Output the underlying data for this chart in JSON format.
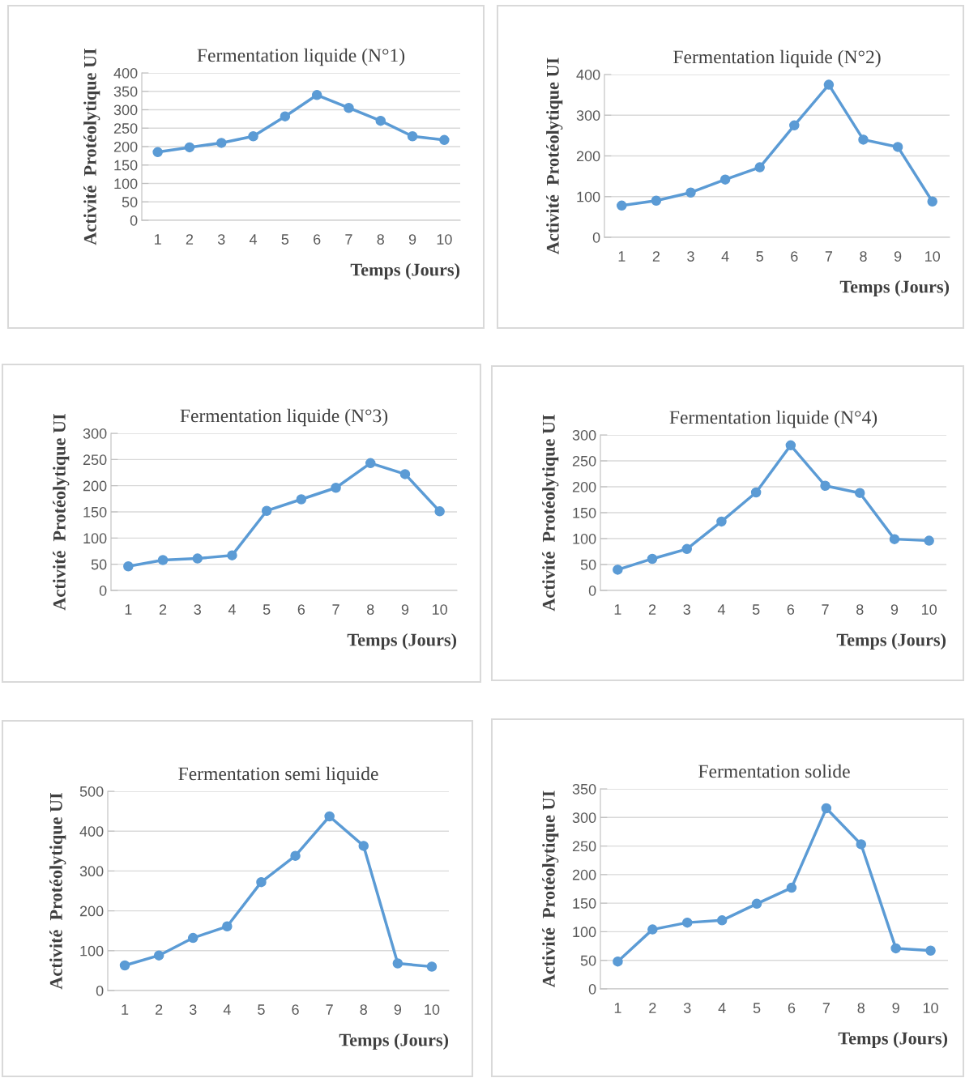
{
  "chart_data": [
    {
      "type": "line",
      "title": "Fermentation liquide (N°1)",
      "xlabel": "Temps (Jours)",
      "ylabel": "Activité  Protéolytique UI",
      "categories": [
        "1",
        "2",
        "3",
        "4",
        "5",
        "6",
        "7",
        "8",
        "9",
        "10"
      ],
      "series": [
        {
          "color": "#5b9bd5",
          "values": [
            185,
            198,
            210,
            228,
            282,
            340,
            305,
            270,
            228,
            218
          ]
        }
      ],
      "ylim": [
        0,
        400
      ],
      "yticks": [
        0,
        50,
        100,
        150,
        200,
        250,
        300,
        350,
        400
      ],
      "grid": "y",
      "marker": "circle",
      "legend": false
    },
    {
      "type": "line",
      "title": "Fermentation liquide (N°2)",
      "xlabel": "Temps (Jours)",
      "ylabel": "Activité  Protéolytique UI",
      "categories": [
        "1",
        "2",
        "3",
        "4",
        "5",
        "6",
        "7",
        "8",
        "9",
        "10"
      ],
      "series": [
        {
          "color": "#5b9bd5",
          "values": [
            78,
            90,
            110,
            142,
            172,
            275,
            375,
            240,
            222,
            88
          ]
        }
      ],
      "ylim": [
        0,
        400
      ],
      "yticks": [
        0,
        100,
        200,
        300,
        400
      ],
      "grid": "y",
      "marker": "circle",
      "legend": false
    },
    {
      "type": "line",
      "title": "Fermentation liquide (N°3)",
      "xlabel": "Temps (Jours)",
      "ylabel": "Activité  Protéolytique UI",
      "categories": [
        "1",
        "2",
        "3",
        "4",
        "5",
        "6",
        "7",
        "8",
        "9",
        "10"
      ],
      "series": [
        {
          "color": "#5b9bd5",
          "values": [
            46,
            58,
            61,
            67,
            152,
            174,
            196,
            243,
            222,
            151
          ]
        }
      ],
      "ylim": [
        0,
        300
      ],
      "yticks": [
        0,
        50,
        100,
        150,
        200,
        250,
        300
      ],
      "grid": "y",
      "marker": "circle",
      "legend": false
    },
    {
      "type": "line",
      "title": "Fermentation liquide (N°4)",
      "xlabel": "Temps (Jours)",
      "ylabel": "Activité  Protéolytique UI",
      "categories": [
        "1",
        "2",
        "3",
        "4",
        "5",
        "6",
        "7",
        "8",
        "9",
        "10"
      ],
      "series": [
        {
          "color": "#5b9bd5",
          "values": [
            40,
            61,
            80,
            133,
            189,
            280,
            202,
            188,
            99,
            96
          ]
        }
      ],
      "ylim": [
        0,
        300
      ],
      "yticks": [
        0,
        50,
        100,
        150,
        200,
        250,
        300
      ],
      "grid": "y",
      "marker": "circle",
      "legend": false
    },
    {
      "type": "line",
      "title": "Fermentation semi liquide",
      "xlabel": "Temps (Jours)",
      "ylabel": "Activité  Protéolytique UI",
      "categories": [
        "1",
        "2",
        "3",
        "4",
        "5",
        "6",
        "7",
        "8",
        "9",
        "10"
      ],
      "series": [
        {
          "color": "#5b9bd5",
          "values": [
            63,
            88,
            132,
            161,
            272,
            338,
            437,
            363,
            68,
            60
          ]
        }
      ],
      "ylim": [
        0,
        500
      ],
      "yticks": [
        0,
        100,
        200,
        300,
        400,
        500
      ],
      "grid": "y",
      "marker": "circle",
      "legend": false
    },
    {
      "type": "line",
      "title": "Fermentation solide",
      "xlabel": "Temps (Jours)",
      "ylabel": "Activité  Protéolytique UI",
      "categories": [
        "1",
        "2",
        "3",
        "4",
        "5",
        "6",
        "7",
        "8",
        "9",
        "10"
      ],
      "series": [
        {
          "color": "#5b9bd5",
          "values": [
            48,
            104,
            116,
            120,
            149,
            177,
            316,
            253,
            71,
            67
          ]
        }
      ],
      "ylim": [
        0,
        350
      ],
      "yticks": [
        0,
        50,
        100,
        150,
        200,
        250,
        300,
        350
      ],
      "grid": "y",
      "marker": "circle",
      "legend": false
    }
  ]
}
